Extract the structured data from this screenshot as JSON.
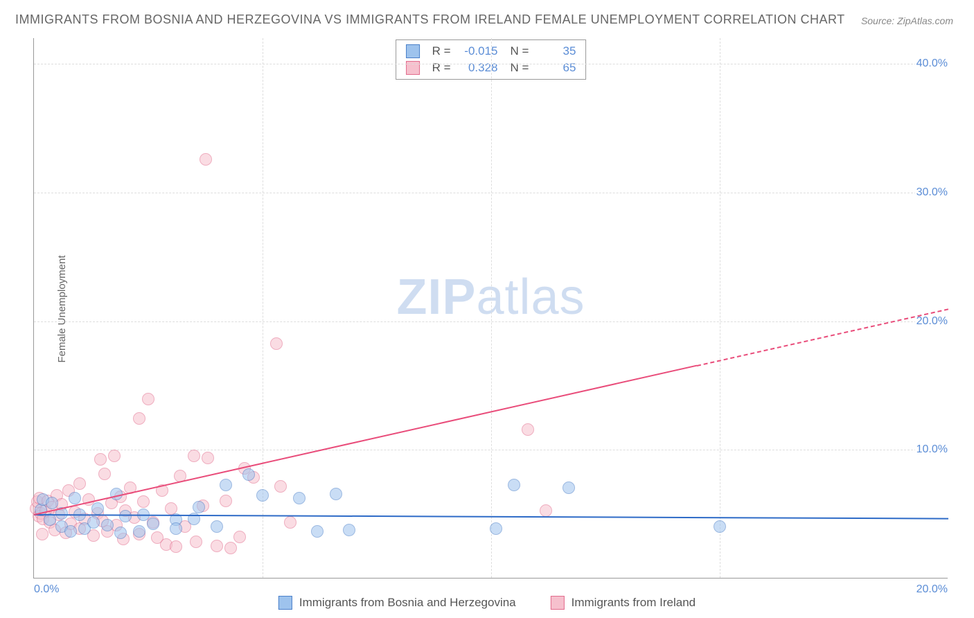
{
  "title": "IMMIGRANTS FROM BOSNIA AND HERZEGOVINA VS IMMIGRANTS FROM IRELAND FEMALE UNEMPLOYMENT CORRELATION CHART",
  "source": "Source: ZipAtlas.com",
  "ylabel": "Female Unemployment",
  "watermark_bold": "ZIP",
  "watermark_rest": "atlas",
  "chart": {
    "type": "scatter",
    "xlim": [
      0,
      20
    ],
    "ylim": [
      0,
      42
    ],
    "x_ticks": [
      {
        "v": 0,
        "l": "0.0%"
      },
      {
        "v": 20,
        "l": "20.0%"
      }
    ],
    "y_ticks": [
      {
        "v": 10,
        "l": "10.0%"
      },
      {
        "v": 20,
        "l": "20.0%"
      },
      {
        "v": 30,
        "l": "30.0%"
      },
      {
        "v": 40,
        "l": "40.0%"
      }
    ],
    "vlines": [
      5,
      10,
      15
    ],
    "background_color": "#ffffff",
    "grid_color": "#dddddd",
    "tick_color": "#5b8dd6",
    "axis_color": "#999999",
    "point_radius": 9,
    "point_opacity": 0.55,
    "series": [
      {
        "name": "Immigrants from Bosnia and Herzegovina",
        "fill": "#9ec3ed",
        "stroke": "#4a7fc9",
        "trend_color": "#2e6bc7",
        "R": "-0.015",
        "N": "35",
        "trend": {
          "x1": 0,
          "y1": 5.0,
          "x2": 20,
          "y2": 4.7,
          "dash_from_x": 20
        },
        "points": [
          [
            0.15,
            5.3
          ],
          [
            0.2,
            6.1
          ],
          [
            0.35,
            4.5
          ],
          [
            0.4,
            5.8
          ],
          [
            0.6,
            5.0
          ],
          [
            0.6,
            4.0
          ],
          [
            0.8,
            3.6
          ],
          [
            0.9,
            6.2
          ],
          [
            1.0,
            4.9
          ],
          [
            1.1,
            3.8
          ],
          [
            1.3,
            4.3
          ],
          [
            1.4,
            5.4
          ],
          [
            1.6,
            4.1
          ],
          [
            1.8,
            6.5
          ],
          [
            1.9,
            3.5
          ],
          [
            2.0,
            4.8
          ],
          [
            2.3,
            3.6
          ],
          [
            2.4,
            4.9
          ],
          [
            2.6,
            4.2
          ],
          [
            3.1,
            4.5
          ],
          [
            3.1,
            3.8
          ],
          [
            3.5,
            4.6
          ],
          [
            3.6,
            5.5
          ],
          [
            4.0,
            4.0
          ],
          [
            4.2,
            7.2
          ],
          [
            4.7,
            8.0
          ],
          [
            5.0,
            6.4
          ],
          [
            5.8,
            6.2
          ],
          [
            6.2,
            3.6
          ],
          [
            6.6,
            6.5
          ],
          [
            6.9,
            3.7
          ],
          [
            10.1,
            3.8
          ],
          [
            10.5,
            7.2
          ],
          [
            11.7,
            7.0
          ],
          [
            15.0,
            4.0
          ]
        ]
      },
      {
        "name": "Immigrants from Ireland",
        "fill": "#f6c0cd",
        "stroke": "#e26b8c",
        "trend_color": "#e94c7a",
        "R": "0.328",
        "N": "65",
        "trend": {
          "x1": 0,
          "y1": 5.0,
          "x2": 20,
          "y2": 21.0,
          "dash_from_x": 14.5
        },
        "points": [
          [
            0.05,
            5.4
          ],
          [
            0.08,
            5.9
          ],
          [
            0.1,
            4.8
          ],
          [
            0.12,
            6.2
          ],
          [
            0.15,
            5.0
          ],
          [
            0.18,
            3.4
          ],
          [
            0.2,
            4.6
          ],
          [
            0.25,
            5.2
          ],
          [
            0.3,
            6.0
          ],
          [
            0.35,
            4.3
          ],
          [
            0.4,
            5.5
          ],
          [
            0.45,
            3.7
          ],
          [
            0.5,
            6.4
          ],
          [
            0.55,
            4.9
          ],
          [
            0.6,
            5.7
          ],
          [
            0.7,
            3.5
          ],
          [
            0.75,
            6.8
          ],
          [
            0.8,
            4.2
          ],
          [
            0.9,
            5.1
          ],
          [
            1.0,
            3.8
          ],
          [
            1.0,
            7.3
          ],
          [
            1.1,
            4.6
          ],
          [
            1.2,
            6.1
          ],
          [
            1.3,
            3.3
          ],
          [
            1.4,
            5.0
          ],
          [
            1.45,
            9.2
          ],
          [
            1.5,
            4.4
          ],
          [
            1.55,
            8.1
          ],
          [
            1.6,
            3.6
          ],
          [
            1.7,
            5.8
          ],
          [
            1.75,
            9.5
          ],
          [
            1.8,
            4.1
          ],
          [
            1.9,
            6.3
          ],
          [
            1.95,
            3.0
          ],
          [
            2.0,
            5.2
          ],
          [
            2.1,
            7.0
          ],
          [
            2.2,
            4.7
          ],
          [
            2.3,
            3.4
          ],
          [
            2.3,
            12.4
          ],
          [
            2.4,
            5.9
          ],
          [
            2.5,
            13.9
          ],
          [
            2.6,
            4.3
          ],
          [
            2.7,
            3.1
          ],
          [
            2.8,
            6.8
          ],
          [
            2.9,
            2.6
          ],
          [
            3.0,
            5.4
          ],
          [
            3.1,
            2.4
          ],
          [
            3.2,
            7.9
          ],
          [
            3.3,
            4.0
          ],
          [
            3.5,
            9.5
          ],
          [
            3.55,
            2.8
          ],
          [
            3.7,
            5.6
          ],
          [
            3.75,
            32.5
          ],
          [
            3.8,
            9.3
          ],
          [
            4.0,
            2.5
          ],
          [
            4.2,
            6.0
          ],
          [
            4.3,
            2.3
          ],
          [
            4.5,
            3.2
          ],
          [
            4.6,
            8.5
          ],
          [
            4.8,
            7.8
          ],
          [
            5.3,
            18.2
          ],
          [
            5.4,
            7.1
          ],
          [
            5.6,
            4.3
          ],
          [
            10.8,
            11.5
          ],
          [
            11.2,
            5.2
          ]
        ]
      }
    ]
  },
  "legend": {
    "label_a": "Immigrants from Bosnia and Herzegovina",
    "label_b": "Immigrants from Ireland"
  },
  "stats_labels": {
    "R": "R =",
    "N": "N ="
  }
}
